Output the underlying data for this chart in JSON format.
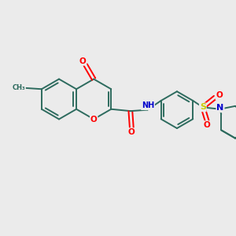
{
  "bg_color": "#ebebeb",
  "bond_color": "#2d6b5e",
  "bond_width": 1.4,
  "atom_colors": {
    "O": "#ff0000",
    "N": "#0000cc",
    "S": "#cccc00",
    "C": "#2d6b5e"
  },
  "figsize": [
    3.0,
    3.0
  ],
  "dpi": 100,
  "xlim": [
    0,
    10
  ],
  "ylim": [
    0,
    10
  ]
}
